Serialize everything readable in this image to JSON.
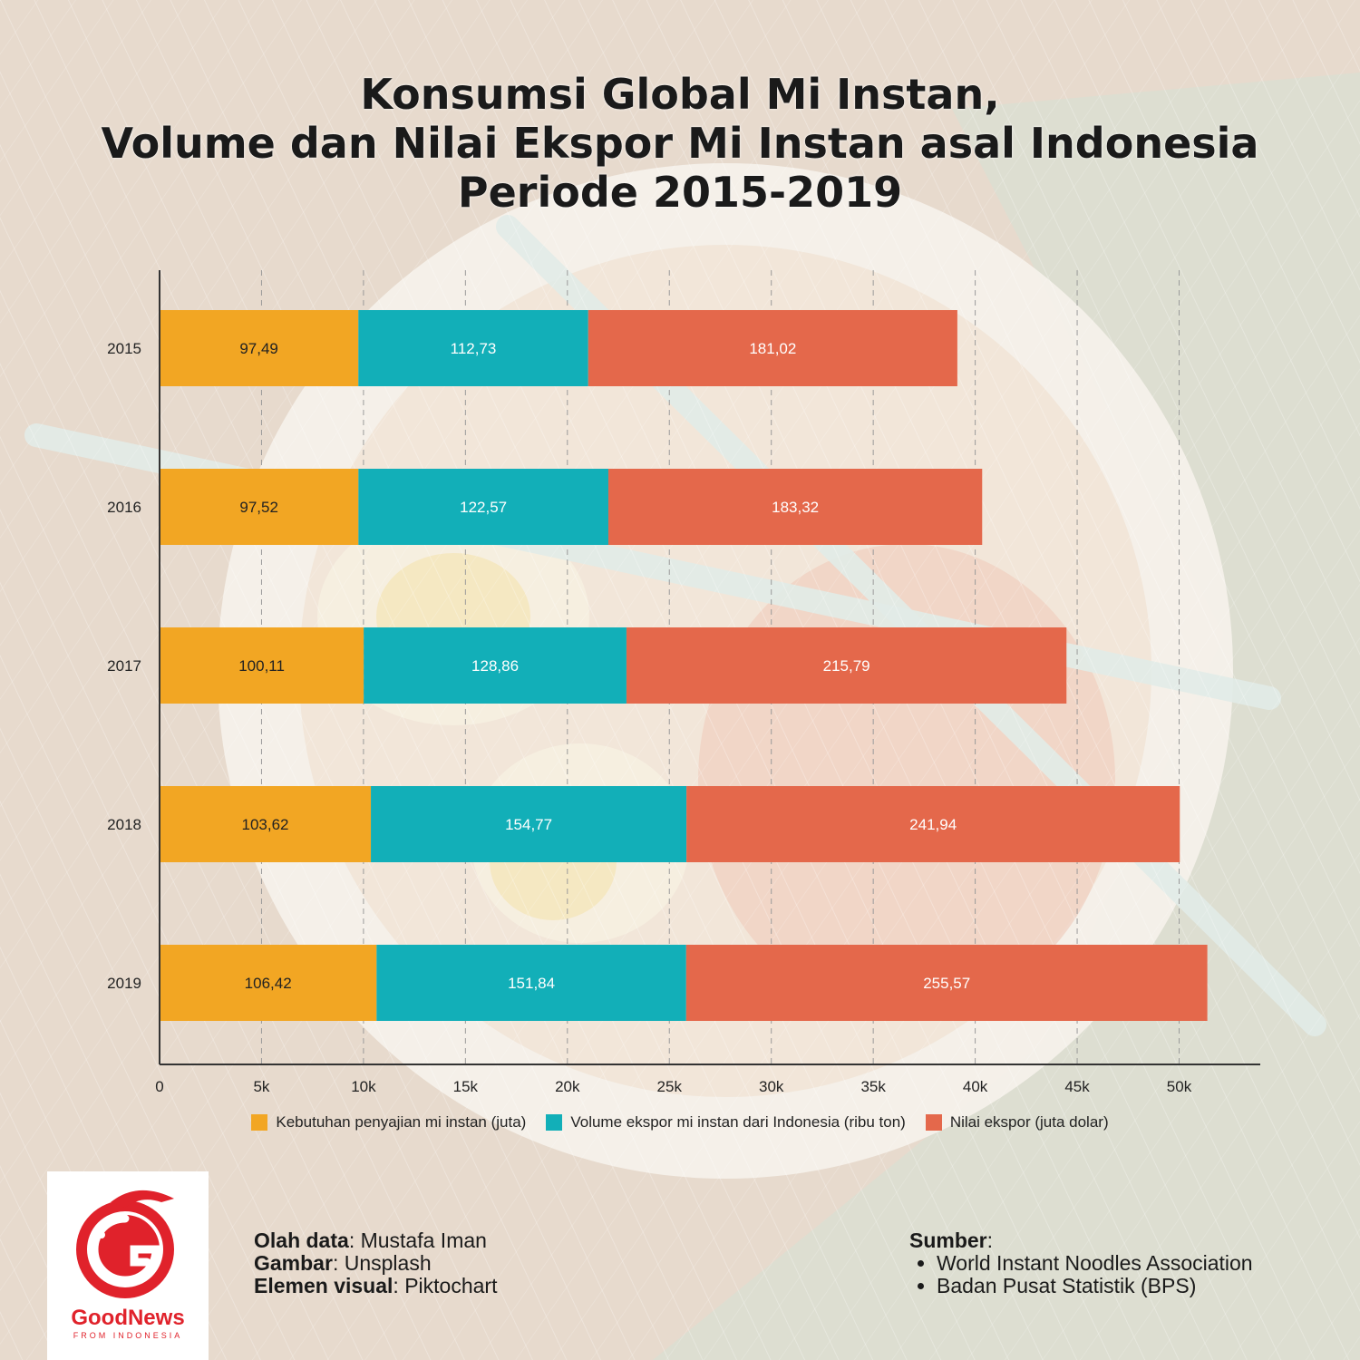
{
  "title_lines": [
    "Konsumsi Global Mi Instan,",
    "Volume dan Nilai Ekspor Mi Instan asal Indonesia",
    "Periode 2015-2019"
  ],
  "chart_data": {
    "type": "bar",
    "orientation": "horizontal",
    "stacked": true,
    "categories": [
      "2015",
      "2016",
      "2017",
      "2018",
      "2019"
    ],
    "series": [
      {
        "name": "Kebutuhan penyajian mi instan (juta)",
        "color": "#f2a623",
        "values": [
          97.49,
          97.52,
          100.11,
          103.62,
          106.42
        ],
        "labels": [
          "97,49",
          "97,52",
          "100,11",
          "103,62",
          "106,42"
        ]
      },
      {
        "name": "Volume ekspor mi instan dari Indonesia (ribu ton)",
        "color": "#12afb8",
        "values": [
          112.73,
          122.57,
          128.86,
          154.77,
          151.84
        ],
        "labels": [
          "112,73",
          "122,57",
          "128,86",
          "154,77",
          "151,84"
        ]
      },
      {
        "name": "Nilai ekspor (juta dolar)",
        "color": "#e4684b",
        "values": [
          181.02,
          183.32,
          215.79,
          241.94,
          255.57
        ],
        "labels": [
          "181,02",
          "183,32",
          "215,79",
          "241,94",
          "255,57"
        ]
      }
    ],
    "x_scale_factor": 100,
    "xlim": [
      0,
      54000
    ],
    "xticks": [
      0,
      5000,
      10000,
      15000,
      20000,
      25000,
      30000,
      35000,
      40000,
      45000,
      50000
    ],
    "xtick_labels": [
      "0",
      "5k",
      "10k",
      "15k",
      "20k",
      "25k",
      "30k",
      "35k",
      "40k",
      "45k",
      "50k"
    ],
    "grid": "vertical dashed",
    "legend_position": "bottom"
  },
  "credits": [
    {
      "key": "Olah data",
      "value": "Mustafa Iman"
    },
    {
      "key": "Gambar",
      "value": "Unsplash"
    },
    {
      "key": "Elemen visual",
      "value": "Piktochart"
    }
  ],
  "sources": {
    "heading": "Sumber",
    "items": [
      "World Instant Noodles Association",
      "Badan Pusat Statistik (BPS)"
    ]
  },
  "logo": {
    "name": "GoodNews",
    "tagline": "FROM INDONESIA",
    "color": "#e0222b"
  }
}
